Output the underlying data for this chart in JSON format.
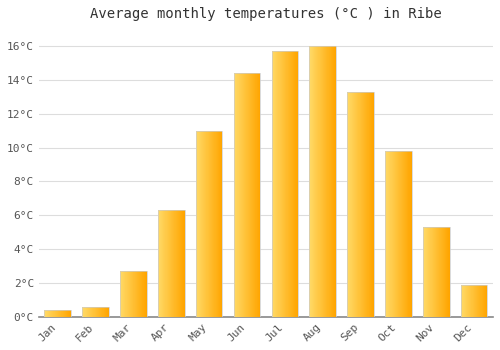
{
  "title": "Average monthly temperatures (°C ) in Ribe",
  "months": [
    "Jan",
    "Feb",
    "Mar",
    "Apr",
    "May",
    "Jun",
    "Jul",
    "Aug",
    "Sep",
    "Oct",
    "Nov",
    "Dec"
  ],
  "values": [
    0.4,
    0.6,
    2.7,
    6.3,
    11.0,
    14.4,
    15.7,
    16.0,
    13.3,
    9.8,
    5.3,
    1.9
  ],
  "bar_color_left": "#FFD966",
  "bar_color_right": "#FFA500",
  "bar_edge_color": "#CCCCCC",
  "ylim": [
    0,
    17
  ],
  "yticks": [
    0,
    2,
    4,
    6,
    8,
    10,
    12,
    14,
    16
  ],
  "ytick_labels": [
    "0°C",
    "2°C",
    "4°C",
    "6°C",
    "8°C",
    "10°C",
    "12°C",
    "14°C",
    "16°C"
  ],
  "background_color": "#FFFFFF",
  "grid_color": "#DDDDDD",
  "title_fontsize": 10,
  "tick_fontsize": 8,
  "font_family": "monospace",
  "bar_width": 0.7
}
